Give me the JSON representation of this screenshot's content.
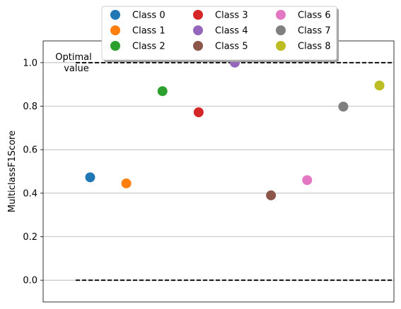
{
  "chart_data": {
    "type": "scatter",
    "title": "",
    "xlabel": "",
    "ylabel": "MulticlassF1Score",
    "ylim": [
      -0.1,
      1.1
    ],
    "yticks": [
      0.0,
      0.2,
      0.4,
      0.6,
      0.8,
      1.0
    ],
    "ytick_labels": [
      "0.0",
      "0.2",
      "0.4",
      "0.6",
      "0.8",
      "1.0"
    ],
    "grid": "horizontal",
    "legend": "top-center, 3 columns",
    "series": [
      {
        "name": "Class 0",
        "color": "#1f77b4",
        "values": [
          0.473
        ]
      },
      {
        "name": "Class 1",
        "color": "#ff7f0e",
        "values": [
          0.445
        ]
      },
      {
        "name": "Class 2",
        "color": "#2ca02c",
        "values": [
          0.869
        ]
      },
      {
        "name": "Class 3",
        "color": "#d62728",
        "values": [
          0.772
        ]
      },
      {
        "name": "Class 4",
        "color": "#9467bd",
        "values": [
          1.0
        ]
      },
      {
        "name": "Class 5",
        "color": "#8c564b",
        "values": [
          0.39
        ]
      },
      {
        "name": "Class 6",
        "color": "#e377c2",
        "values": [
          0.46
        ]
      },
      {
        "name": "Class 7",
        "color": "#7f7f7f",
        "values": [
          0.798
        ]
      },
      {
        "name": "Class 8",
        "color": "#bcbd22",
        "values": [
          0.895
        ]
      }
    ],
    "reference_lines": [
      {
        "y": 1.0,
        "style": "dashed"
      },
      {
        "y": 0.0,
        "style": "dashed"
      }
    ],
    "annotations": [
      {
        "line1": "Optimal",
        "line2": "value"
      }
    ]
  }
}
